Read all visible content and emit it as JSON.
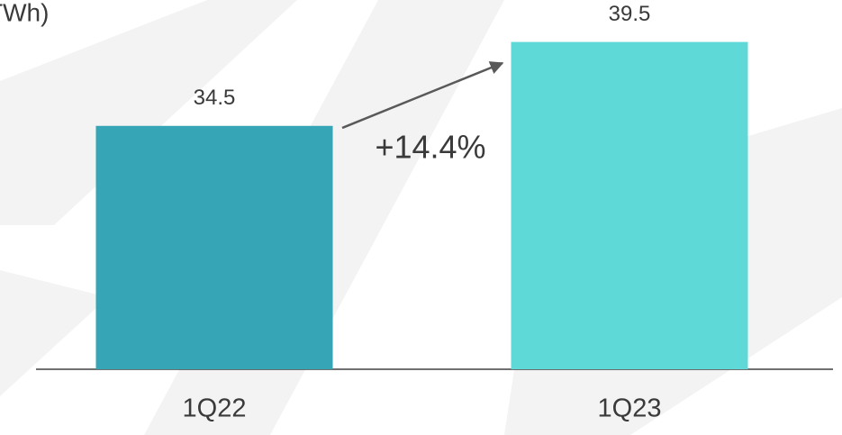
{
  "chart_data": {
    "type": "bar",
    "title": "TWh)",
    "categories": [
      "1Q22",
      "1Q23"
    ],
    "values": [
      34.5,
      39.5
    ],
    "colors": [
      "#36a5b5",
      "#5fd8d8"
    ],
    "ylim": [
      20,
      42
    ],
    "annotation": "+14.4%"
  }
}
